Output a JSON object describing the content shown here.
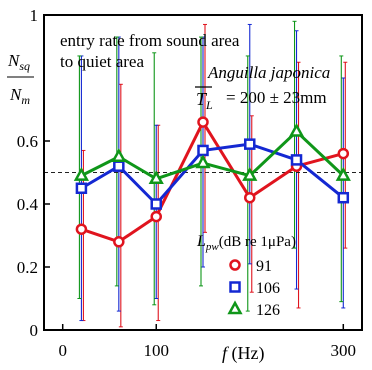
{
  "chart_data": {
    "type": "line",
    "annotation_lines": [
      "entry rate from sound area",
      "to quiet area"
    ],
    "species": "Anguilla japonica",
    "length_label": "= 200 ± 23mm",
    "ylabel_num": "N",
    "ylabel_num_sub": "sq",
    "ylabel_den": "N",
    "ylabel_den_sub": "m",
    "xlabel": "f (Hz)",
    "legend_title": "L",
    "legend_title_sub": "pw",
    "legend_title_rest": "(dB re 1μPa)",
    "xlim": [
      -20,
      320
    ],
    "ylim": [
      0,
      1
    ],
    "xticks": [
      0,
      100,
      300
    ],
    "yticks": [
      0,
      0.2,
      0.4,
      0.6,
      1
    ],
    "reference_line": 0.5,
    "x": [
      20,
      60,
      100,
      150,
      200,
      250,
      300
    ],
    "series": [
      {
        "name": "91",
        "marker": "circle",
        "color": "#e0141e",
        "values": [
          0.32,
          0.28,
          0.36,
          0.66,
          0.42,
          0.52,
          0.56
        ],
        "err_low": [
          0.03,
          0.01,
          0.03,
          0.31,
          0.12,
          0.07,
          0.26
        ],
        "err_high": [
          0.57,
          0.78,
          0.65,
          0.97,
          0.68,
          0.85,
          0.85
        ]
      },
      {
        "name": "106",
        "marker": "square",
        "color": "#1428d2",
        "values": [
          0.45,
          0.52,
          0.4,
          0.57,
          0.59,
          0.54,
          0.42
        ],
        "err_low": [
          0.03,
          0.06,
          0.1,
          0.2,
          0.21,
          0.13,
          0.07
        ],
        "err_high": [
          0.87,
          0.93,
          0.65,
          0.93,
          0.97,
          0.95,
          0.8
        ]
      },
      {
        "name": "126",
        "marker": "triangle",
        "color": "#0f9619",
        "values": [
          0.49,
          0.55,
          0.48,
          0.53,
          0.49,
          0.63,
          0.49
        ],
        "err_low": [
          0.1,
          0.14,
          0.08,
          0.14,
          0.06,
          0.26,
          0.09
        ],
        "err_high": [
          0.87,
          0.93,
          0.88,
          0.93,
          0.87,
          0.98,
          0.87
        ]
      }
    ]
  }
}
